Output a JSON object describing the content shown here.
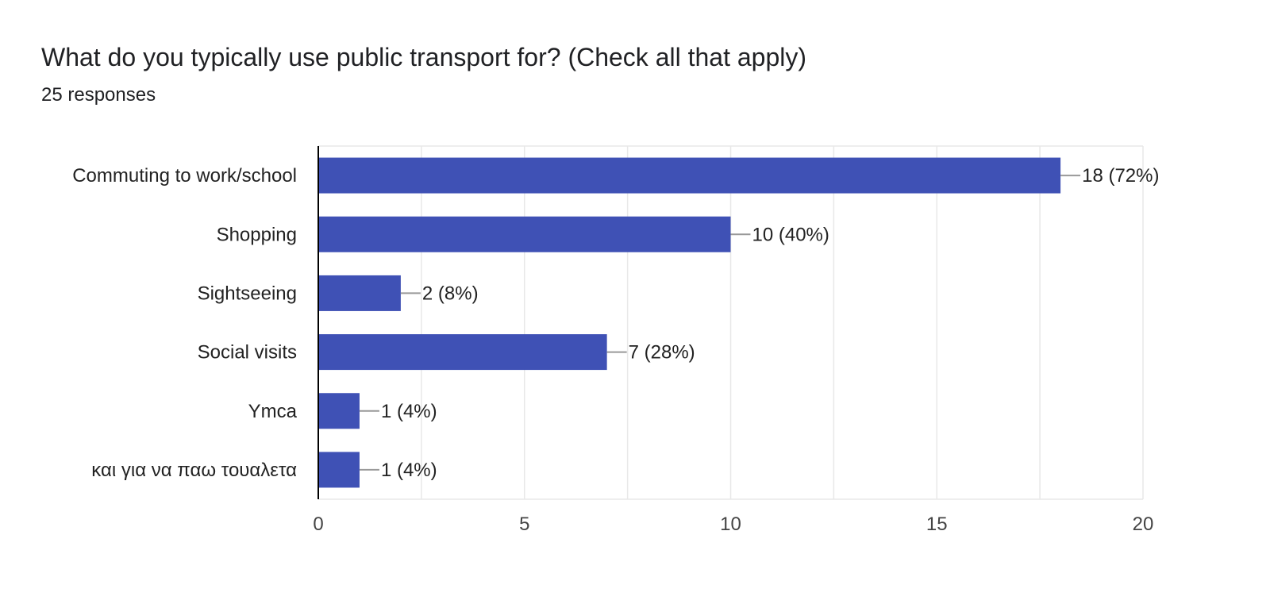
{
  "question": {
    "title": "What do you typically use public transport for? (Check all that apply)",
    "responses": "25 responses"
  },
  "colors": {
    "bar": "#3f51b5",
    "grid": "#e8e8e8",
    "axis": "#000000",
    "leader": "#999999"
  },
  "chart_data": {
    "type": "bar",
    "orientation": "horizontal",
    "title": "What do you typically use public transport for? (Check all that apply)",
    "subtitle": "25 responses",
    "categories": [
      "Commuting to work/school",
      "Shopping",
      "Sightseeing",
      "Social visits",
      "Ymca",
      "και για να παω τουαλετα"
    ],
    "values": [
      18,
      10,
      2,
      7,
      1,
      1
    ],
    "data_labels": [
      "18 (72%)",
      "10 (40%)",
      "2 (8%)",
      "7 (28%)",
      "1 (4%)",
      "1 (4%)"
    ],
    "xlim": [
      0,
      20
    ],
    "xticks": [
      0,
      5,
      10,
      15,
      20
    ],
    "grid": true,
    "legend": "none"
  }
}
